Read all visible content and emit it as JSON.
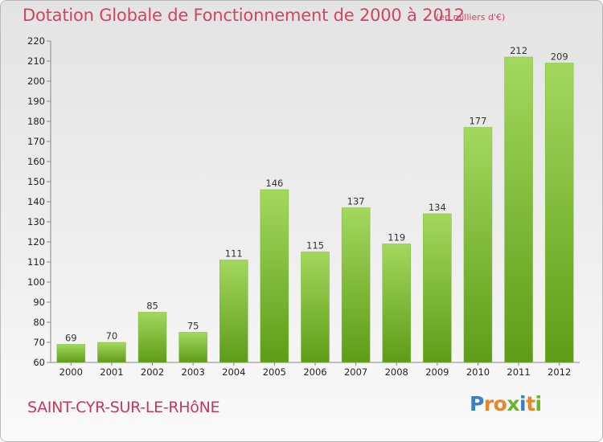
{
  "title": "Dotation Globale de Fonctionnement de 2000 à 2012",
  "subtitle": "(en milliers d'€)",
  "commune": "SAINT-CYR-SUR-LE-RHôNE",
  "logo": {
    "letters": [
      "P",
      "r",
      "o",
      "x",
      "i",
      "t",
      "i"
    ],
    "colors": [
      "#3a7fc4",
      "#e8862a",
      "#e8862a",
      "#6ab32e",
      "#3a7fc4",
      "#e8862a",
      "#6ab32e"
    ]
  },
  "colors": {
    "accent": "#d2445f",
    "bar_light": "#a0d65a",
    "bar_dark": "#5e9c18"
  },
  "chart_data": {
    "type": "bar",
    "categories": [
      "2000",
      "2001",
      "2002",
      "2003",
      "2004",
      "2005",
      "2006",
      "2007",
      "2008",
      "2009",
      "2010",
      "2011",
      "2012"
    ],
    "values": [
      69,
      70,
      85,
      75,
      111,
      146,
      115,
      137,
      119,
      134,
      177,
      212,
      209
    ],
    "ylim": [
      60,
      220
    ],
    "yticks": [
      60,
      70,
      80,
      90,
      100,
      110,
      120,
      130,
      140,
      150,
      160,
      170,
      180,
      190,
      200,
      210,
      220
    ],
    "grid": false,
    "data_labels": true
  }
}
